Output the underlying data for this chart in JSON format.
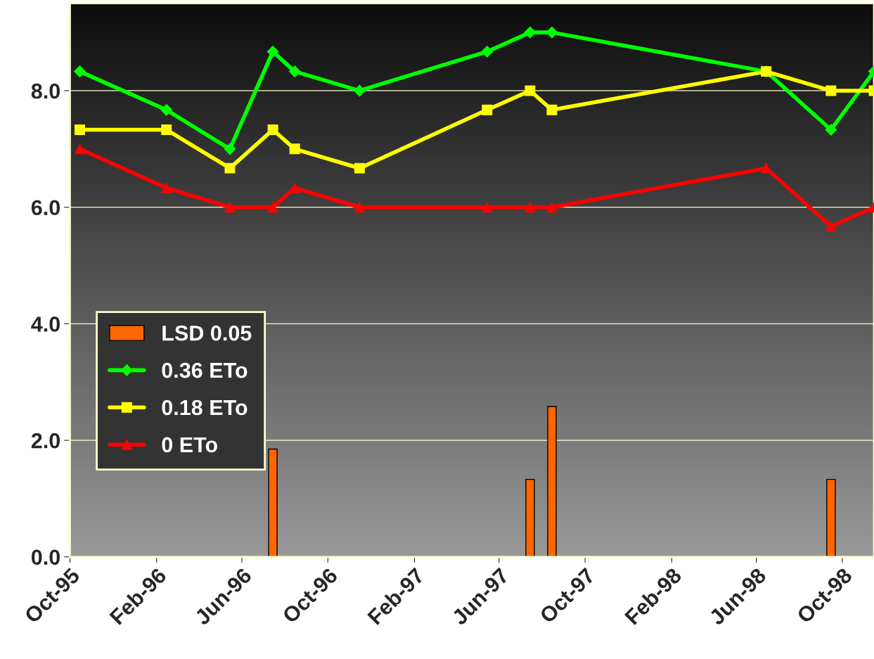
{
  "chart_data": {
    "type": "line",
    "ylim": [
      0,
      9.5
    ],
    "yticks": [
      {
        "value": 0,
        "label": "0.0"
      },
      {
        "value": 2,
        "label": "2.0"
      },
      {
        "value": 4,
        "label": "4.0"
      },
      {
        "value": 6,
        "label": "6.0"
      },
      {
        "value": 8,
        "label": "8.0"
      }
    ],
    "xlim": [
      "1995-10-01",
      "1998-11-15"
    ],
    "xticks": [
      {
        "value": "1995-10-01",
        "label": "Oct-95"
      },
      {
        "value": "1996-02-01",
        "label": "Feb-96"
      },
      {
        "value": "1996-06-01",
        "label": "Jun-96"
      },
      {
        "value": "1996-10-01",
        "label": "Oct-96"
      },
      {
        "value": "1997-02-01",
        "label": "Feb-97"
      },
      {
        "value": "1997-06-01",
        "label": "Jun-97"
      },
      {
        "value": "1997-10-01",
        "label": "Oct-97"
      },
      {
        "value": "1998-02-01",
        "label": "Feb-98"
      },
      {
        "value": "1998-06-01",
        "label": "Jun-98"
      },
      {
        "value": "1998-10-01",
        "label": "Oct-98"
      }
    ],
    "grid": "y",
    "legend": "left",
    "line_style": "solid",
    "series": [
      {
        "name": "LSD 0.05",
        "type": "bar",
        "color": "#ff6600",
        "x": [
          "1996-07-15",
          "1997-07-15",
          "1997-08-15",
          "1998-09-15"
        ],
        "values": [
          1.85,
          1.33,
          2.58,
          1.33
        ]
      },
      {
        "name": "0.36 ETo",
        "marker": "diamond",
        "color": "#00ff00",
        "x": [
          "1995-10-15",
          "1996-02-15",
          "1996-05-15",
          "1996-07-15",
          "1996-08-15",
          "1996-11-15",
          "1997-05-15",
          "1997-07-15",
          "1997-08-15",
          "1998-06-15",
          "1998-09-15",
          "1998-11-15"
        ],
        "values": [
          8.33,
          7.67,
          7.0,
          8.67,
          8.33,
          8.0,
          8.67,
          9.0,
          9.0,
          8.33,
          7.33,
          8.33
        ]
      },
      {
        "name": "0.18 ETo",
        "marker": "square",
        "color": "#ffff00",
        "x": [
          "1995-10-15",
          "1996-02-15",
          "1996-05-15",
          "1996-07-15",
          "1996-08-15",
          "1996-11-15",
          "1997-05-15",
          "1997-07-15",
          "1997-08-15",
          "1998-06-15",
          "1998-09-15",
          "1998-11-15"
        ],
        "values": [
          7.33,
          7.33,
          6.67,
          7.33,
          7.0,
          6.67,
          7.67,
          8.0,
          7.67,
          8.33,
          8.0,
          8.0
        ]
      },
      {
        "name": "0 ETo",
        "marker": "triangle",
        "color": "#ff0000",
        "x": [
          "1995-10-15",
          "1996-02-15",
          "1996-05-15",
          "1996-07-15",
          "1996-08-15",
          "1996-11-15",
          "1997-05-15",
          "1997-07-15",
          "1997-08-15",
          "1998-06-15",
          "1998-09-15",
          "1998-11-15"
        ],
        "values": [
          7.0,
          6.33,
          6.0,
          6.0,
          6.33,
          6.0,
          6.0,
          6.0,
          6.0,
          6.67,
          5.67,
          6.0
        ]
      }
    ]
  }
}
